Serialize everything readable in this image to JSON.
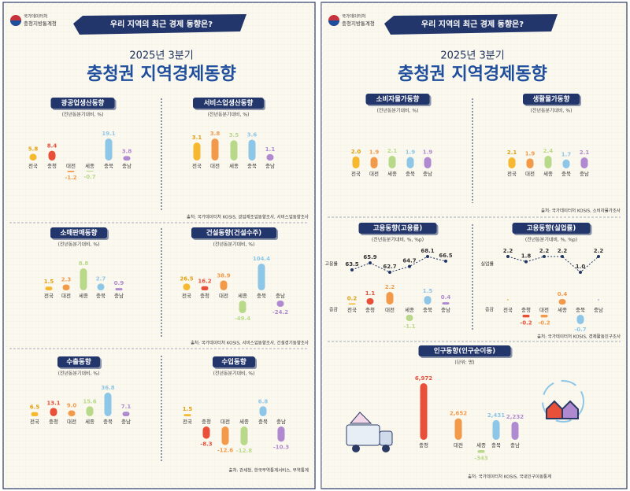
{
  "header_left": {
    "org": "국가데이터처",
    "office": "충청지방통계청",
    "ribbon": "우리 지역의 최근 경제 동향은?",
    "period": "2025년 3분기",
    "title": "충청권 지역경제동향"
  },
  "header_right": {
    "org": "국가데이터처",
    "office": "충청지방통계청",
    "ribbon": "우리 지역의 최근 경제 동향은?",
    "period": "2025년 3분기",
    "title": "충청권 지역경제동향"
  },
  "chart_data": [
    {
      "type": "bar",
      "title": "광공업생산동향",
      "subtitle": "(전년동분기대비, %)",
      "categories": [
        "전국",
        "충청",
        "대전",
        "세종",
        "충북",
        "충남"
      ],
      "values": [
        5.8,
        8.4,
        -1.2,
        -0.7,
        19.1,
        3.8
      ],
      "colors": [
        "#f5b82e",
        "#e8503a",
        "#f29a4a",
        "#b9d98a",
        "#8ec6e8",
        "#b08ad0"
      ]
    },
    {
      "type": "bar",
      "title": "서비스업생산동향",
      "subtitle": "(전년동분기대비, %)",
      "categories": [
        "전국",
        "대전",
        "세종",
        "충북",
        "충남"
      ],
      "values": [
        3.1,
        3.8,
        3.5,
        3.6,
        1.1
      ],
      "colors": [
        "#f5b82e",
        "#f29a4a",
        "#b9d98a",
        "#8ec6e8",
        "#b08ad0"
      ],
      "source": "출처: 국가데이터처 KOSIS, 광업제조업동향조사, 서비스업동향조사"
    },
    {
      "type": "bar",
      "title": "소매판매동향",
      "subtitle": "(전년동분기대비, %)",
      "categories": [
        "전국",
        "대전",
        "세종",
        "충북",
        "충남"
      ],
      "values": [
        1.5,
        2.3,
        8.8,
        2.7,
        0.9
      ],
      "colors": [
        "#f5b82e",
        "#f29a4a",
        "#b9d98a",
        "#8ec6e8",
        "#b08ad0"
      ]
    },
    {
      "type": "bar",
      "title": "건설동향(건설수주)",
      "subtitle": "(전년동분기대비, %)",
      "categories": [
        "전국",
        "충청",
        "대전",
        "세종",
        "충북",
        "충남"
      ],
      "values": [
        26.5,
        16.2,
        38.9,
        -49.4,
        104.4,
        -24.2
      ],
      "colors": [
        "#f5b82e",
        "#e8503a",
        "#f29a4a",
        "#b9d98a",
        "#8ec6e8",
        "#b08ad0"
      ],
      "source": "출처: 국가데이터처 KOSIS, 서비스업동향조사, 건설경기동향조사"
    },
    {
      "type": "bar",
      "title": "수출동향",
      "subtitle": "(전년동분기대비, %)",
      "categories": [
        "전국",
        "충청",
        "대전",
        "세종",
        "충북",
        "충남"
      ],
      "values": [
        6.5,
        13.1,
        9.0,
        15.6,
        36.8,
        7.1
      ],
      "value_labels": [
        "6.5",
        "13.1",
        "9.0",
        "15.6",
        "36.8",
        "7.1"
      ],
      "colors": [
        "#f5b82e",
        "#e8503a",
        "#f29a4a",
        "#b9d98a",
        "#8ec6e8",
        "#b08ad0"
      ]
    },
    {
      "type": "bar",
      "title": "수입동향",
      "subtitle": "(전년동분기대비, %)",
      "categories": [
        "전국",
        "충청",
        "대전",
        "세종",
        "충북",
        "충남"
      ],
      "values": [
        1.5,
        -8.3,
        -12.6,
        -12.8,
        6.8,
        -10.3
      ],
      "colors": [
        "#f5b82e",
        "#e8503a",
        "#f29a4a",
        "#b9d98a",
        "#8ec6e8",
        "#b08ad0"
      ],
      "source": "출처: 관세청, 한국무역통계서비스, 무역통계"
    },
    {
      "type": "bar",
      "title": "소비자물가동향",
      "subtitle": "(전년동분기대비, %)",
      "categories": [
        "전국",
        "대전",
        "세종",
        "충북",
        "충남"
      ],
      "values": [
        2.0,
        1.9,
        2.1,
        1.9,
        1.9
      ],
      "value_labels": [
        "2.0",
        "1.9",
        "2.1",
        "1.9",
        "1.9"
      ],
      "colors": [
        "#f5b82e",
        "#f29a4a",
        "#b9d98a",
        "#8ec6e8",
        "#b08ad0"
      ]
    },
    {
      "type": "bar",
      "title": "생활물가동향",
      "subtitle": "(전년동분기대비, %)",
      "categories": [
        "전국",
        "대전",
        "세종",
        "충북",
        "충남"
      ],
      "values": [
        2.1,
        1.9,
        2.4,
        1.7,
        2.1
      ],
      "colors": [
        "#f5b82e",
        "#f29a4a",
        "#b9d98a",
        "#8ec6e8",
        "#b08ad0"
      ],
      "source": "출처: 국가데이터처 KOSIS, 소비자물가조사"
    },
    {
      "type": "combo",
      "title": "고용동향(고용률)",
      "subtitle": "(전년동분기대비, %, %p)",
      "categories": [
        "전국",
        "충청",
        "대전",
        "세종",
        "충북",
        "충남"
      ],
      "series": [
        {
          "name": "고용률",
          "type": "line",
          "color": "#1f3563",
          "values": [
            63.5,
            65.9,
            62.7,
            64.7,
            68.1,
            66.5
          ]
        },
        {
          "name": "증감",
          "type": "bar",
          "values": [
            0.2,
            1.1,
            2.2,
            -1.1,
            1.5,
            0.4
          ],
          "colors": [
            "#f5b82e",
            "#e8503a",
            "#f29a4a",
            "#b9d98a",
            "#8ec6e8",
            "#b08ad0"
          ]
        }
      ]
    },
    {
      "type": "combo",
      "title": "고용동향(실업률)",
      "subtitle": "(전년동분기대비, %, %p)",
      "categories": [
        "전국",
        "충청",
        "대전",
        "세종",
        "충북",
        "충남"
      ],
      "series": [
        {
          "name": "실업률",
          "type": "line",
          "color": "#1f3563",
          "values": [
            2.2,
            1.8,
            2.2,
            2.2,
            1.0,
            2.2
          ],
          "value_labels": [
            "2.2",
            "1.8",
            "2.2",
            "2.2",
            "1.0",
            "2.2"
          ]
        },
        {
          "name": "증감",
          "type": "bar",
          "values": [
            0,
            -0.2,
            -0.2,
            0.4,
            -0.7,
            0
          ],
          "value_labels": [
            "-",
            "-0.2",
            "-0.2",
            "0.4",
            "-0.7",
            "-"
          ],
          "colors": [
            "#f5b82e",
            "#e8503a",
            "#f29a4a",
            "#f29a4a",
            "#8ec6e8",
            "#b08ad0"
          ]
        }
      ],
      "source": "출처: 국가데이터처 KOSIS, 경제활동인구조사"
    },
    {
      "type": "bar",
      "title": "인구동향(인구순이동)",
      "subtitle": "(단위: 명)",
      "categories": [
        "충청",
        "대전",
        "세종",
        "충북",
        "충남"
      ],
      "values": [
        6972,
        2652,
        -343,
        2431,
        2232
      ],
      "value_labels": [
        "6,972",
        "2,652",
        "-343",
        "2,431",
        "2,232"
      ],
      "colors": [
        "#e8503a",
        "#f29a4a",
        "#b9d98a",
        "#8ec6e8",
        "#b08ad0"
      ],
      "source": "출처: 국가데이터처 KOSIS, 국내인구이동통계"
    }
  ]
}
